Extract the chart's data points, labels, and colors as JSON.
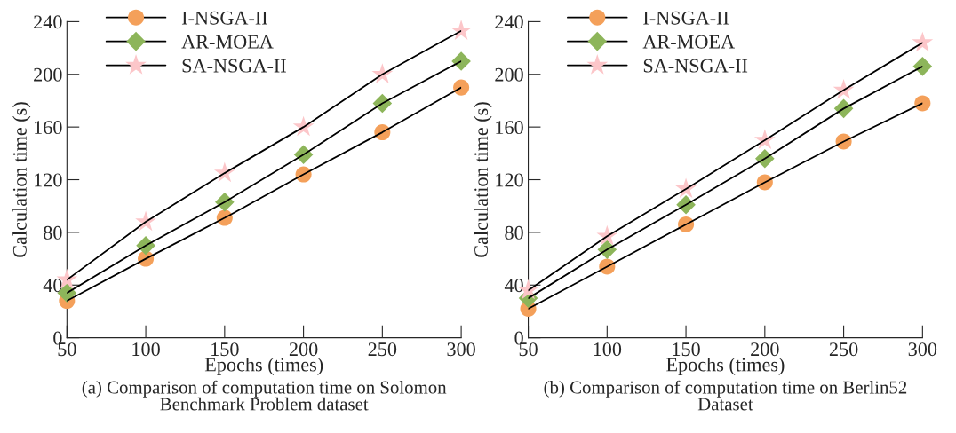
{
  "chart_data": [
    {
      "type": "line",
      "title": "(a) Comparison of computation time on Solomon\nBenchmark Problem dataset",
      "xlabel": "Epochs (times)",
      "ylabel": "Calculation time (s)",
      "x": [
        50,
        100,
        150,
        200,
        250,
        300
      ],
      "xlim": [
        50,
        300
      ],
      "xticks": [
        50,
        100,
        150,
        200,
        250,
        300
      ],
      "ylim": [
        0,
        240
      ],
      "yticks": [
        0,
        40,
        80,
        120,
        160,
        200,
        240
      ],
      "grid": false,
      "legend": "top left",
      "series": [
        {
          "color": "#000000",
          "marker": "none",
          "values": [
            28,
            60,
            91,
            124,
            156,
            190
          ]
        },
        {
          "color": "#000000",
          "marker": "none",
          "values": [
            34,
            70,
            103,
            139,
            178,
            210
          ]
        },
        {
          "color": "#000000",
          "marker": "none",
          "values": [
            44,
            88,
            125,
            160,
            200,
            233
          ]
        },
        {
          "type": "scatter",
          "name": "I-NSGA-II",
          "color": "#f4a05a",
          "marker": "circle",
          "values": [
            28,
            60,
            91,
            124,
            156,
            190
          ]
        },
        {
          "type": "scatter",
          "name": "AR-MOEA",
          "color": "#8db55a",
          "marker": "diamond",
          "values": [
            34,
            70,
            103,
            139,
            178,
            210
          ]
        },
        {
          "type": "scatter",
          "name": "SA-NSGA-II",
          "color": "#fcc6c9",
          "marker": "star",
          "values": [
            44,
            88,
            125,
            160,
            200,
            233
          ]
        }
      ]
    },
    {
      "type": "line",
      "title": "(b) Comparison of computation time on Berlin52\nDataset",
      "xlabel": "Epochs (times)",
      "ylabel": "Calculation time (s)",
      "x": [
        50,
        100,
        150,
        200,
        250,
        300
      ],
      "xlim": [
        50,
        300
      ],
      "xticks": [
        50,
        100,
        150,
        200,
        250,
        300
      ],
      "ylim": [
        0,
        240
      ],
      "yticks": [
        0,
        40,
        80,
        120,
        160,
        200,
        240
      ],
      "grid": false,
      "legend": "top left",
      "series": [
        {
          "color": "#000000",
          "marker": "none",
          "values": [
            22,
            54,
            86,
            118,
            149,
            178
          ]
        },
        {
          "color": "#000000",
          "marker": "none",
          "values": [
            30,
            67,
            101,
            136,
            174,
            206
          ]
        },
        {
          "color": "#000000",
          "marker": "none",
          "values": [
            36,
            77,
            113,
            150,
            188,
            224
          ]
        },
        {
          "type": "scatter",
          "name": "I-NSGA-II",
          "color": "#f4a05a",
          "marker": "circle",
          "values": [
            22,
            54,
            86,
            118,
            149,
            178
          ]
        },
        {
          "type": "scatter",
          "name": "AR-MOEA",
          "color": "#8db55a",
          "marker": "diamond",
          "values": [
            30,
            67,
            101,
            136,
            174,
            206
          ]
        },
        {
          "type": "scatter",
          "name": "SA-NSGA-II",
          "color": "#fcc6c9",
          "marker": "star",
          "values": [
            36,
            77,
            113,
            150,
            188,
            224
          ]
        }
      ]
    }
  ]
}
